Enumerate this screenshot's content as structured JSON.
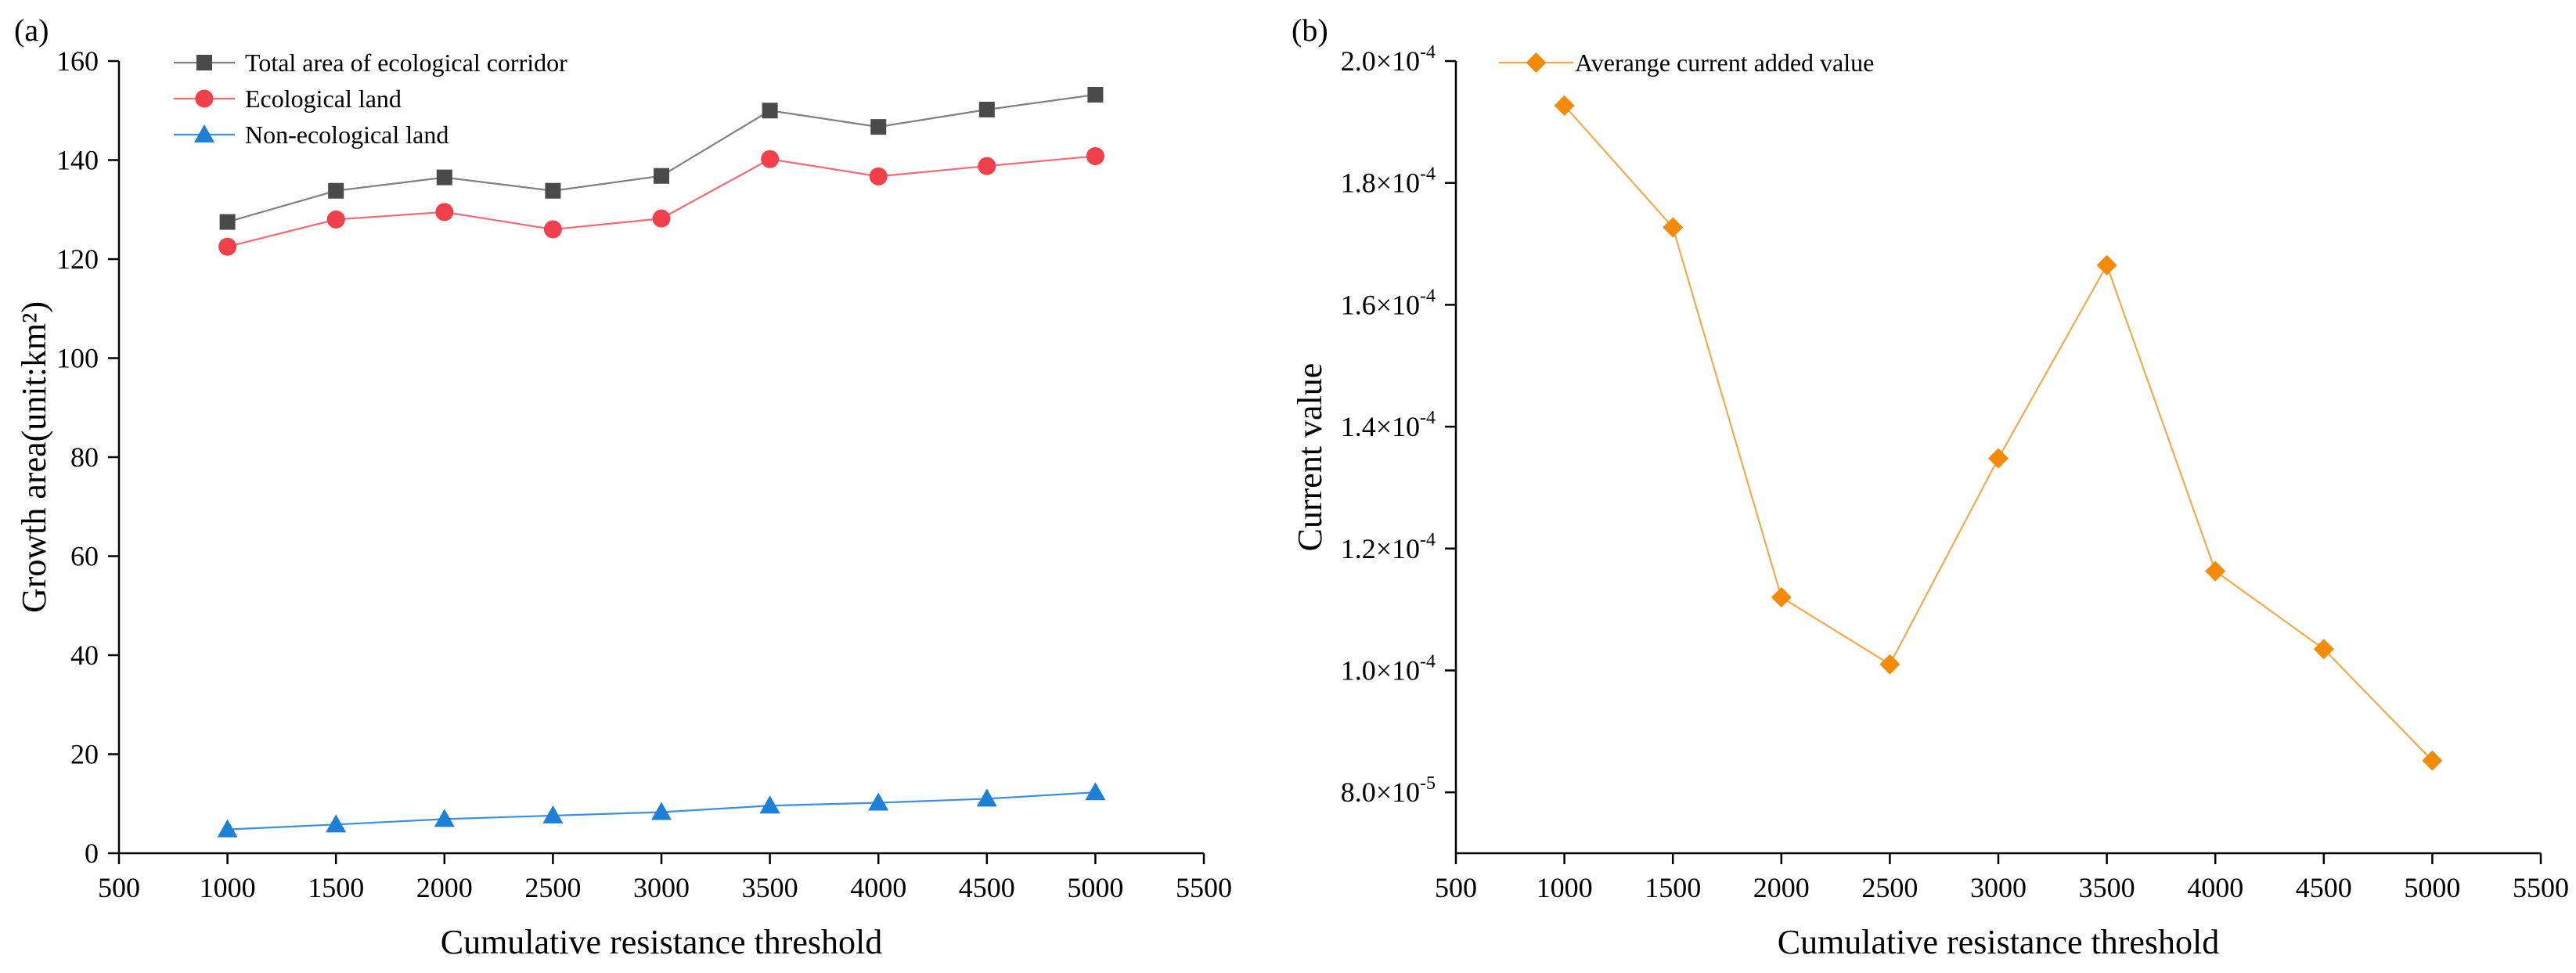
{
  "chart_data": [
    {
      "type": "line",
      "panel_label": "(a)",
      "xlabel": "Cumulative resistance threshold",
      "ylabel": "Growth area(unit:km²)",
      "xlim": [
        500,
        5500
      ],
      "ylim": [
        0,
        160
      ],
      "xticks": [
        500,
        1000,
        1500,
        2000,
        2500,
        3000,
        3500,
        4000,
        4500,
        5000,
        5500
      ],
      "yticks": [
        0,
        20,
        40,
        60,
        80,
        100,
        120,
        140,
        160
      ],
      "x": [
        1000,
        1500,
        2000,
        2500,
        3000,
        3500,
        4000,
        4500,
        5000
      ],
      "legend_position": "top-left",
      "series": [
        {
          "name": "Total area of ecological corridor",
          "marker": "square",
          "color": "#4a4a4a",
          "line_color": "#808080",
          "values": [
            127.5,
            133.8,
            136.5,
            133.8,
            136.8,
            150.0,
            146.7,
            150.2,
            153.2
          ]
        },
        {
          "name": "Ecological land",
          "marker": "circle",
          "color": "#f0404b",
          "line_color": "#f46a72",
          "values": [
            122.5,
            128.0,
            129.5,
            126.0,
            128.2,
            140.2,
            136.7,
            138.8,
            140.8
          ]
        },
        {
          "name": "Non-ecological land",
          "marker": "triangle",
          "color": "#1e7fd8",
          "line_color": "#3b8fde",
          "values": [
            4.8,
            5.8,
            6.9,
            7.6,
            8.3,
            9.6,
            10.2,
            11.0,
            12.3
          ]
        }
      ]
    },
    {
      "type": "line",
      "panel_label": "(b)",
      "xlabel": "Cumulative resistance threshold",
      "ylabel": "Current  value",
      "xlim": [
        500,
        5500
      ],
      "ylim": [
        7e-05,
        0.0002
      ],
      "xticks": [
        500,
        1000,
        1500,
        2000,
        2500,
        3000,
        3500,
        4000,
        4500,
        5000,
        5500
      ],
      "yticks": [
        8e-05,
        0.0001,
        0.00012,
        0.00014,
        0.00016,
        0.00018,
        0.0002
      ],
      "ytick_mantissa": [
        "8.0",
        "1.0",
        "1.2",
        "1.4",
        "1.6",
        "1.8",
        "2.0"
      ],
      "ytick_exponent": [
        "-5",
        "-4",
        "-4",
        "-4",
        "-4",
        "-4",
        "-4"
      ],
      "ytick_times": "×10",
      "x": [
        1000,
        1500,
        2000,
        2500,
        3000,
        3500,
        4000,
        4500,
        5000
      ],
      "legend_position": "top-left",
      "series": [
        {
          "name": "Averange current added value",
          "marker": "diamond",
          "color": "#f58a07",
          "line_color": "#f6a94a",
          "values": [
            0.0001927,
            0.0001727,
            0.000112,
            0.000101,
            0.0001348,
            0.0001665,
            0.0001163,
            0.0001035,
            8.52e-05
          ]
        }
      ]
    }
  ]
}
